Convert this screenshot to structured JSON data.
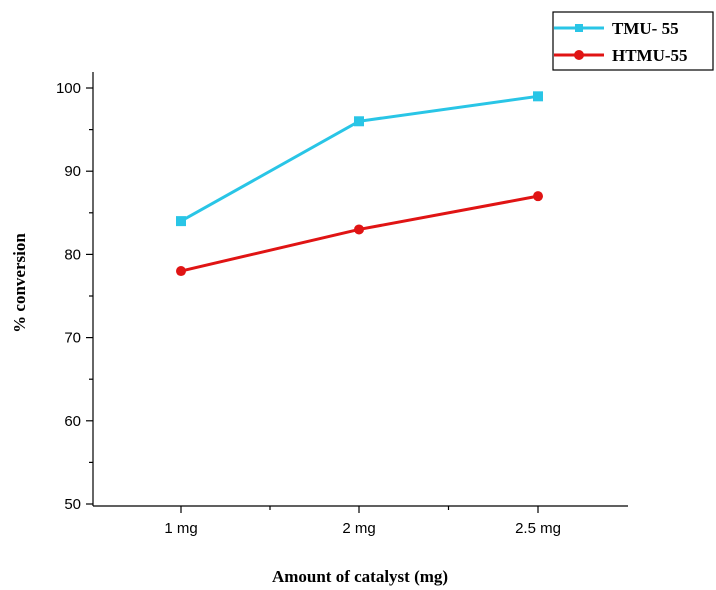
{
  "chart_data": {
    "type": "line",
    "title": "",
    "xlabel": "Amount of catalyst (mg)",
    "ylabel": "% conversion",
    "categories": [
      "1 mg",
      "2 mg",
      "2.5 mg"
    ],
    "ylim": [
      50,
      100
    ],
    "yticks": [
      50,
      60,
      70,
      80,
      90,
      100
    ],
    "grid": false,
    "legend_position": "top-right",
    "series": [
      {
        "name": "TMU- 55",
        "values": [
          84,
          96,
          99
        ],
        "color": "#29c5e6",
        "marker": "square"
      },
      {
        "name": "HTMU-55",
        "values": [
          78,
          83,
          87
        ],
        "color": "#e01414",
        "marker": "circle"
      }
    ]
  }
}
